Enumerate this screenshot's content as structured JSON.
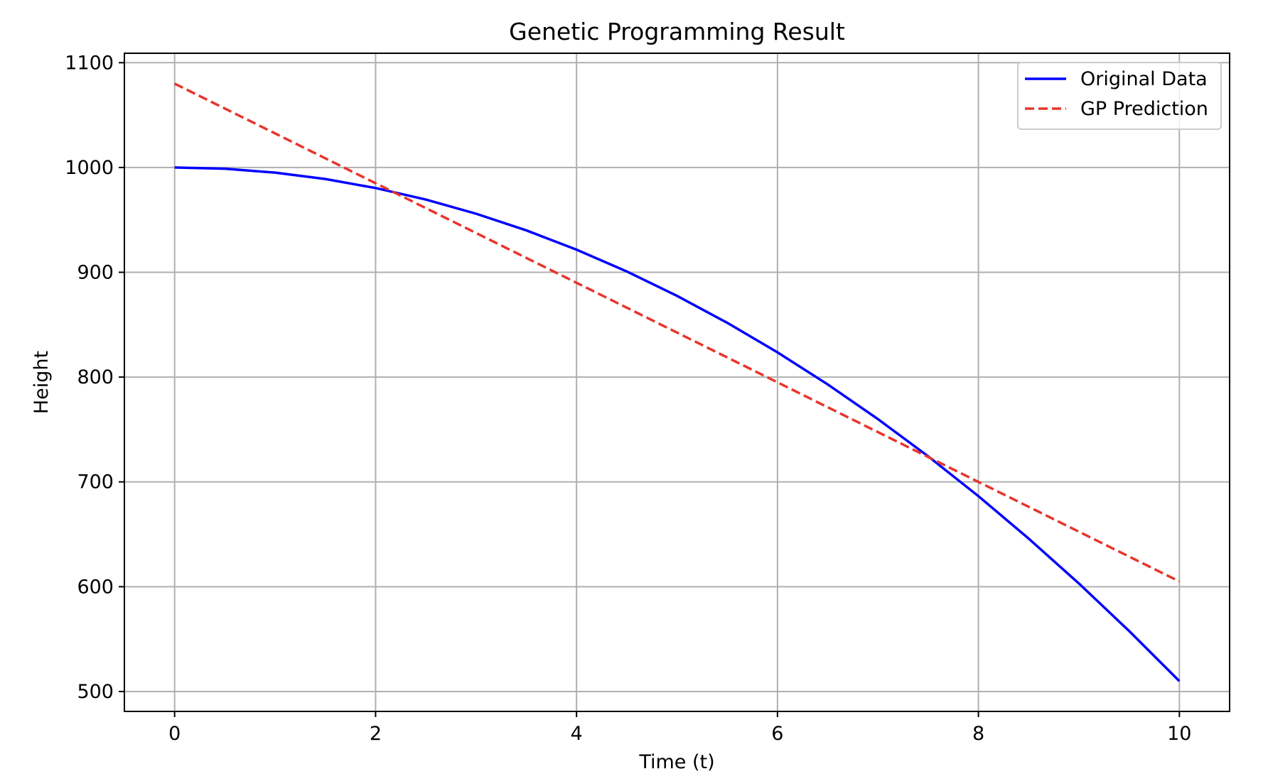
{
  "chart_data": {
    "type": "line",
    "title": "Genetic Programming Result",
    "xlabel": "Time (t)",
    "ylabel": "Height",
    "xlim": [
      -0.5,
      10.5
    ],
    "ylim": [
      481,
      1109
    ],
    "xticks": [
      0,
      2,
      4,
      6,
      8,
      10
    ],
    "yticks": [
      500,
      600,
      700,
      800,
      900,
      1000,
      1100
    ],
    "grid": true,
    "legend_position": "top-right",
    "series": [
      {
        "name": "Original Data",
        "color": "#0000ff",
        "style": "solid",
        "x": [
          0,
          0.5,
          1,
          1.5,
          2,
          2.5,
          3,
          3.5,
          4,
          4.5,
          5,
          5.5,
          6,
          6.5,
          7,
          7.5,
          8,
          8.5,
          9,
          9.5,
          10
        ],
        "y": [
          1000,
          998.8,
          995.1,
          989,
          980.4,
          969.4,
          955.9,
          940,
          921.6,
          900.8,
          877.5,
          851.8,
          823.6,
          793,
          759.9,
          724.4,
          686.4,
          645.9,
          603.1,
          557.7,
          509.9
        ]
      },
      {
        "name": "GP Prediction",
        "color": "#e8352b",
        "style": "dashed",
        "x": [
          0,
          10
        ],
        "y": [
          1080,
          605
        ]
      }
    ]
  }
}
